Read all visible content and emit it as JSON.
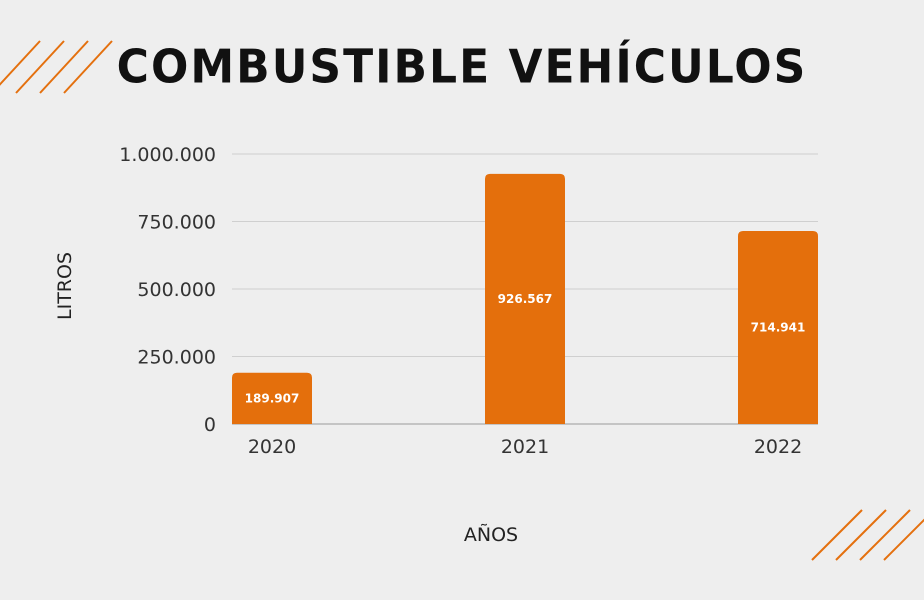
{
  "title": "COMBUSTIBLE VEHÍCULOS",
  "colors": {
    "background": "#eeeeee",
    "bar": "#e46f0c",
    "accent": "#e4700e",
    "grid": "#cfcfcf"
  },
  "chart_data": {
    "type": "bar",
    "title": "COMBUSTIBLE VEHÍCULOS",
    "xlabel": "AÑOS",
    "ylabel": "LITROS",
    "categories": [
      "2020",
      "2021",
      "2022"
    ],
    "values": [
      189907,
      926567,
      714941
    ],
    "value_labels": [
      "189.907",
      "926.567",
      "714.941"
    ],
    "ylim": [
      0,
      1000000
    ],
    "y_ticks": [
      0,
      250000,
      500000,
      750000,
      1000000
    ],
    "y_tick_labels": [
      "0",
      "250.000",
      "500.000",
      "750.000",
      "1.000.000"
    ],
    "grid": true,
    "legend": "none"
  }
}
